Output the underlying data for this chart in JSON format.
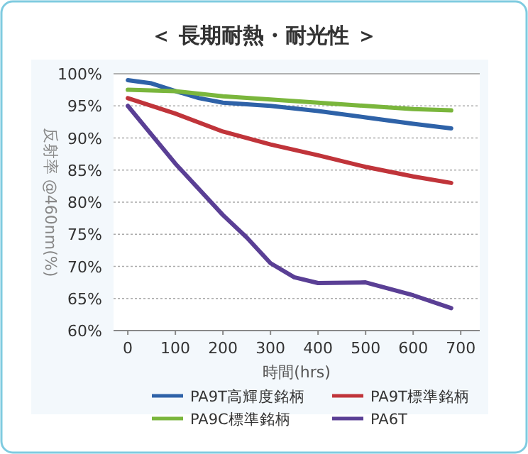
{
  "chart_data": {
    "type": "line",
    "title": "＜ 長期耐熱・耐光性 ＞",
    "xlabel": "時間(hrs)",
    "ylabel": "反射率 @460nm(%)",
    "xlim": [
      -30,
      740
    ],
    "xticks": [
      0,
      100,
      200,
      300,
      400,
      500,
      600,
      700
    ],
    "ylim": [
      60,
      100
    ],
    "yticks": [
      {
        "value": 60,
        "label": "60%"
      },
      {
        "value": 65,
        "label": "65%"
      },
      {
        "value": 70,
        "label": "70%"
      },
      {
        "value": 75,
        "label": "75%"
      },
      {
        "value": 80,
        "label": "80%"
      },
      {
        "value": 85,
        "label": "85%"
      },
      {
        "value": 90,
        "label": "90%"
      },
      {
        "value": 95,
        "label": "95%"
      },
      {
        "value": 100,
        "label": "100%"
      }
    ],
    "grid": "y",
    "legend": "bottom",
    "marker": "none",
    "line_style": "solid",
    "series": [
      {
        "name": "PA9T高輝度銘柄",
        "color": "#2e62a8",
        "x": [
          0,
          50,
          100,
          150,
          200,
          300,
          400,
          500,
          600,
          680
        ],
        "values": [
          99,
          98.5,
          97.3,
          96.2,
          95.5,
          95,
          94.2,
          93.2,
          92.2,
          91.5
        ]
      },
      {
        "name": "PA9T標準銘柄",
        "color": "#c0343a",
        "x": [
          0,
          100,
          200,
          300,
          400,
          500,
          600,
          680
        ],
        "values": [
          96.2,
          93.8,
          91,
          89,
          87.3,
          85.5,
          84,
          83
        ]
      },
      {
        "name": "PA9C標準銘柄",
        "color": "#7ab63c",
        "x": [
          0,
          100,
          200,
          300,
          400,
          500,
          600,
          680
        ],
        "values": [
          97.5,
          97.3,
          96.5,
          96,
          95.5,
          95,
          94.5,
          94.3
        ]
      },
      {
        "name": "PA6T",
        "color": "#5a3f95",
        "x": [
          0,
          100,
          200,
          250,
          300,
          350,
          400,
          500,
          600,
          680
        ],
        "values": [
          95,
          86,
          78,
          74.5,
          70.5,
          68.3,
          67.4,
          67.5,
          65.5,
          63.5
        ]
      }
    ]
  }
}
